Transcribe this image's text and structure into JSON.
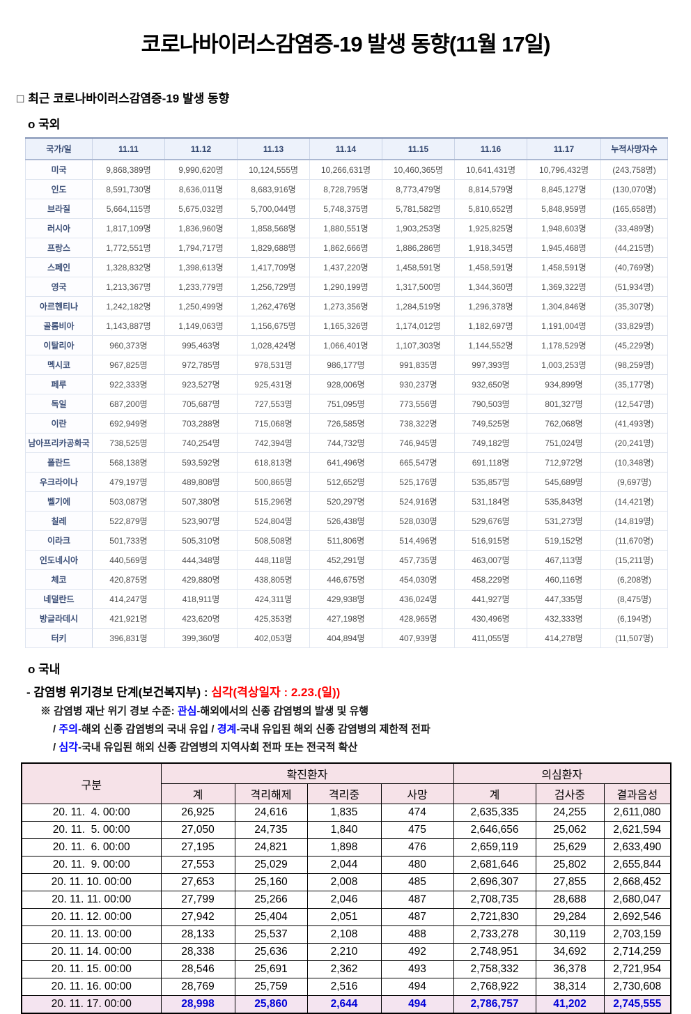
{
  "title": "코로나바이러스감염증-19 발생 동향(11월 17일)",
  "colors": {
    "accent_red": "#FF0000",
    "accent_blue": "#0000FF",
    "highlight_value_blue": "#0000D8",
    "intl_header_bg": "#EDF2FB",
    "intl_header_text": "#31456E",
    "domestic_header_bg": "#F6E2E8",
    "highlight_row_bg": "#F4E4F0"
  },
  "section": {
    "box_glyph": "□",
    "heading": "최근 코로나바이러스감염증-19 발생 동향",
    "overseas_label": "o 국외"
  },
  "intl_table": {
    "headers": [
      "국가/일",
      "11.11",
      "11.12",
      "11.13",
      "11.14",
      "11.15",
      "11.16",
      "11.17",
      "누적사망자수"
    ],
    "rows": [
      [
        "미국",
        "9,868,389명",
        "9,990,620명",
        "10,124,555명",
        "10,266,631명",
        "10,460,365명",
        "10,641,431명",
        "10,796,432명",
        "(243,758명)"
      ],
      [
        "인도",
        "8,591,730명",
        "8,636,011명",
        "8,683,916명",
        "8,728,795명",
        "8,773,479명",
        "8,814,579명",
        "8,845,127명",
        "(130,070명)"
      ],
      [
        "브라질",
        "5,664,115명",
        "5,675,032명",
        "5,700,044명",
        "5,748,375명",
        "5,781,582명",
        "5,810,652명",
        "5,848,959명",
        "(165,658명)"
      ],
      [
        "러시아",
        "1,817,109명",
        "1,836,960명",
        "1,858,568명",
        "1,880,551명",
        "1,903,253명",
        "1,925,825명",
        "1,948,603명",
        "(33,489명)"
      ],
      [
        "프랑스",
        "1,772,551명",
        "1,794,717명",
        "1,829,688명",
        "1,862,666명",
        "1,886,286명",
        "1,918,345명",
        "1,945,468명",
        "(44,215명)"
      ],
      [
        "스페인",
        "1,328,832명",
        "1,398,613명",
        "1,417,709명",
        "1,437,220명",
        "1,458,591명",
        "1,458,591명",
        "1,458,591명",
        "(40,769명)"
      ],
      [
        "영국",
        "1,213,367명",
        "1,233,779명",
        "1,256,729명",
        "1,290,199명",
        "1,317,500명",
        "1,344,360명",
        "1,369,322명",
        "(51,934명)"
      ],
      [
        "아르헨티나",
        "1,242,182명",
        "1,250,499명",
        "1,262,476명",
        "1,273,356명",
        "1,284,519명",
        "1,296,378명",
        "1,304,846명",
        "(35,307명)"
      ],
      [
        "골롬비아",
        "1,143,887명",
        "1,149,063명",
        "1,156,675명",
        "1,165,326명",
        "1,174,012명",
        "1,182,697명",
        "1,191,004명",
        "(33,829명)"
      ],
      [
        "이탈리아",
        "960,373명",
        "995,463명",
        "1,028,424명",
        "1,066,401명",
        "1,107,303명",
        "1,144,552명",
        "1,178,529명",
        "(45,229명)"
      ],
      [
        "멕시코",
        "967,825명",
        "972,785명",
        "978,531명",
        "986,177명",
        "991,835명",
        "997,393명",
        "1,003,253명",
        "(98,259명)"
      ],
      [
        "페루",
        "922,333명",
        "923,527명",
        "925,431명",
        "928,006명",
        "930,237명",
        "932,650명",
        "934,899명",
        "(35,177명)"
      ],
      [
        "독일",
        "687,200명",
        "705,687명",
        "727,553명",
        "751,095명",
        "773,556명",
        "790,503명",
        "801,327명",
        "(12,547명)"
      ],
      [
        "이란",
        "692,949명",
        "703,288명",
        "715,068명",
        "726,585명",
        "738,322명",
        "749,525명",
        "762,068명",
        "(41,493명)"
      ],
      [
        "남아프리카공화국",
        "738,525명",
        "740,254명",
        "742,394명",
        "744,732명",
        "746,945명",
        "749,182명",
        "751,024명",
        "(20,241명)"
      ],
      [
        "폴란드",
        "568,138명",
        "593,592명",
        "618,813명",
        "641,496명",
        "665,547명",
        "691,118명",
        "712,972명",
        "(10,348명)"
      ],
      [
        "우크라이나",
        "479,197명",
        "489,808명",
        "500,865명",
        "512,652명",
        "525,176명",
        "535,857명",
        "545,689명",
        "(9,697명)"
      ],
      [
        "벨기에",
        "503,087명",
        "507,380명",
        "515,296명",
        "520,297명",
        "524,916명",
        "531,184명",
        "535,843명",
        "(14,421명)"
      ],
      [
        "칠레",
        "522,879명",
        "523,907명",
        "524,804명",
        "526,438명",
        "528,030명",
        "529,676명",
        "531,273명",
        "(14,819명)"
      ],
      [
        "이라크",
        "501,733명",
        "505,310명",
        "508,508명",
        "511,806명",
        "514,496명",
        "516,915명",
        "519,152명",
        "(11,670명)"
      ],
      [
        "인도네시아",
        "440,569명",
        "444,348명",
        "448,118명",
        "452,291명",
        "457,735명",
        "463,007명",
        "467,113명",
        "(15,211명)"
      ],
      [
        "체코",
        "420,875명",
        "429,880명",
        "438,805명",
        "446,675명",
        "454,030명",
        "458,229명",
        "460,116명",
        "(6,208명)"
      ],
      [
        "네덜란드",
        "414,247명",
        "418,911명",
        "424,311명",
        "429,938명",
        "436,024명",
        "441,927명",
        "447,335명",
        "(8,475명)"
      ],
      [
        "방글라데시",
        "421,921명",
        "423,620명",
        "425,353명",
        "427,198명",
        "428,965명",
        "430,496명",
        "432,333명",
        "(6,194명)"
      ],
      [
        "터키",
        "396,831명",
        "399,360명",
        "402,053명",
        "404,894명",
        "407,939명",
        "411,055명",
        "414,278명",
        "(11,507명)"
      ]
    ]
  },
  "domestic": {
    "label": "o 국내",
    "crisis_prefix": "- 감염병 위기경보 단계(보건복지부) : ",
    "crisis_red": "심각(격상일자 : 2.23.(일))",
    "note1": {
      "prefix": "※ 감염병 재난 위기 경보 수준: ",
      "blue": "관심",
      "rest": "-해외에서의 신종 감염병의 발생 및 유행"
    },
    "note2": {
      "p1": "/ ",
      "blue1": "주의",
      "p2": "-해외 신종 감염병의 국내 유입 / ",
      "blue2": "경계",
      "p3": "-국내 유입된 해외 신종 감염병의 제한적 전파"
    },
    "note3": {
      "p1": "/ ",
      "blue1": "심각",
      "p2": "-국내 유입된 해외 신종 감염병의 지역사회 전파 또는 전국적 확산"
    }
  },
  "domestic_table": {
    "col_gubun": "구분",
    "group_confirmed": "확진환자",
    "group_suspected": "의심환자",
    "sub_headers": [
      "계",
      "격리해제",
      "격리중",
      "사망",
      "계",
      "검사중",
      "결과음성"
    ],
    "rows": [
      {
        "cells": [
          "20. 11.  4. 00:00",
          "26,925",
          "24,616",
          "1,835",
          "474",
          "2,635,335",
          "24,255",
          "2,611,080"
        ],
        "highlight": false
      },
      {
        "cells": [
          "20. 11.  5. 00:00",
          "27,050",
          "24,735",
          "1,840",
          "475",
          "2,646,656",
          "25,062",
          "2,621,594"
        ],
        "highlight": false
      },
      {
        "cells": [
          "20. 11.  6. 00:00",
          "27,195",
          "24,821",
          "1,898",
          "476",
          "2,659,119",
          "25,629",
          "2,633,490"
        ],
        "highlight": false
      },
      {
        "cells": [
          "20. 11.  9. 00:00",
          "27,553",
          "25,029",
          "2,044",
          "480",
          "2,681,646",
          "25,802",
          "2,655,844"
        ],
        "highlight": false
      },
      {
        "cells": [
          "20. 11. 10. 00:00",
          "27,653",
          "25,160",
          "2,008",
          "485",
          "2,696,307",
          "27,855",
          "2,668,452"
        ],
        "highlight": false
      },
      {
        "cells": [
          "20. 11. 11. 00:00",
          "27,799",
          "25,266",
          "2,046",
          "487",
          "2,708,735",
          "28,688",
          "2,680,047"
        ],
        "highlight": false
      },
      {
        "cells": [
          "20. 11. 12. 00:00",
          "27,942",
          "25,404",
          "2,051",
          "487",
          "2,721,830",
          "29,284",
          "2,692,546"
        ],
        "highlight": false
      },
      {
        "cells": [
          "20. 11. 13. 00:00",
          "28,133",
          "25,537",
          "2,108",
          "488",
          "2,733,278",
          "30,119",
          "2,703,159"
        ],
        "highlight": false
      },
      {
        "cells": [
          "20. 11. 14. 00:00",
          "28,338",
          "25,636",
          "2,210",
          "492",
          "2,748,951",
          "34,692",
          "2,714,259"
        ],
        "highlight": false
      },
      {
        "cells": [
          "20. 11. 15. 00:00",
          "28,546",
          "25,691",
          "2,362",
          "493",
          "2,758,332",
          "36,378",
          "2,721,954"
        ],
        "highlight": false
      },
      {
        "cells": [
          "20. 11. 16. 00:00",
          "28,769",
          "25,759",
          "2,516",
          "494",
          "2,768,922",
          "38,314",
          "2,730,608"
        ],
        "highlight": false
      },
      {
        "cells": [
          "20. 11. 17. 00:00",
          "28,998",
          "25,860",
          "2,644",
          "494",
          "2,786,757",
          "41,202",
          "2,745,555"
        ],
        "highlight": true
      }
    ]
  }
}
